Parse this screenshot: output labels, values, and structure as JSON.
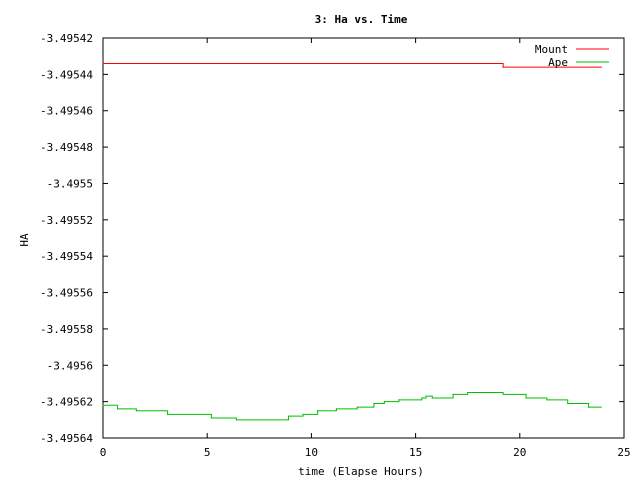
{
  "chart_data": {
    "type": "line",
    "title": "3: Ha vs. Time",
    "xlabel": "time (Elapse Hours)",
    "ylabel": "HA",
    "xlim": [
      0,
      25
    ],
    "ylim": [
      -3.49564,
      -3.49542
    ],
    "x_ticks": [
      0,
      5,
      10,
      15,
      20,
      25
    ],
    "y_ticks": [
      -3.49542,
      -3.49544,
      -3.49546,
      -3.49548,
      -3.4955,
      -3.49552,
      -3.49554,
      -3.49556,
      -3.49558,
      -3.4956,
      -3.49562,
      -3.49564
    ],
    "x_tick_labels": [
      "0",
      "5",
      "10",
      "15",
      "20",
      "25"
    ],
    "y_tick_labels": [
      "-3.49542",
      "-3.49544",
      "-3.49546",
      "-3.49548",
      "-3.4955",
      "-3.49552",
      "-3.49554",
      "-3.49556",
      "-3.49558",
      "-3.4956",
      "-3.49562",
      "-3.49564"
    ],
    "grid": false,
    "legend_position": "top-right",
    "series": [
      {
        "name": "Mount",
        "color": "#ff0000",
        "step": true,
        "x": [
          0,
          19.2,
          23.9
        ],
        "y": [
          -3.495434,
          -3.495436,
          -3.495436
        ]
      },
      {
        "name": "Ape",
        "color": "#00c000",
        "step": true,
        "x": [
          0,
          0.7,
          1.6,
          3.1,
          5.2,
          6.4,
          8.9,
          9.6,
          10.3,
          11.2,
          12.2,
          13.0,
          13.5,
          14.2,
          15.3,
          15.5,
          15.8,
          16.8,
          17.5,
          19.2,
          20.3,
          21.3,
          22.3,
          23.3,
          23.9
        ],
        "y": [
          -3.495622,
          -3.495624,
          -3.495625,
          -3.495627,
          -3.495629,
          -3.49563,
          -3.495628,
          -3.495627,
          -3.495625,
          -3.495624,
          -3.495623,
          -3.495621,
          -3.49562,
          -3.495619,
          -3.495618,
          -3.495617,
          -3.495618,
          -3.495616,
          -3.495615,
          -3.495616,
          -3.495618,
          -3.495619,
          -3.495621,
          -3.495623,
          -3.495623
        ]
      }
    ]
  }
}
